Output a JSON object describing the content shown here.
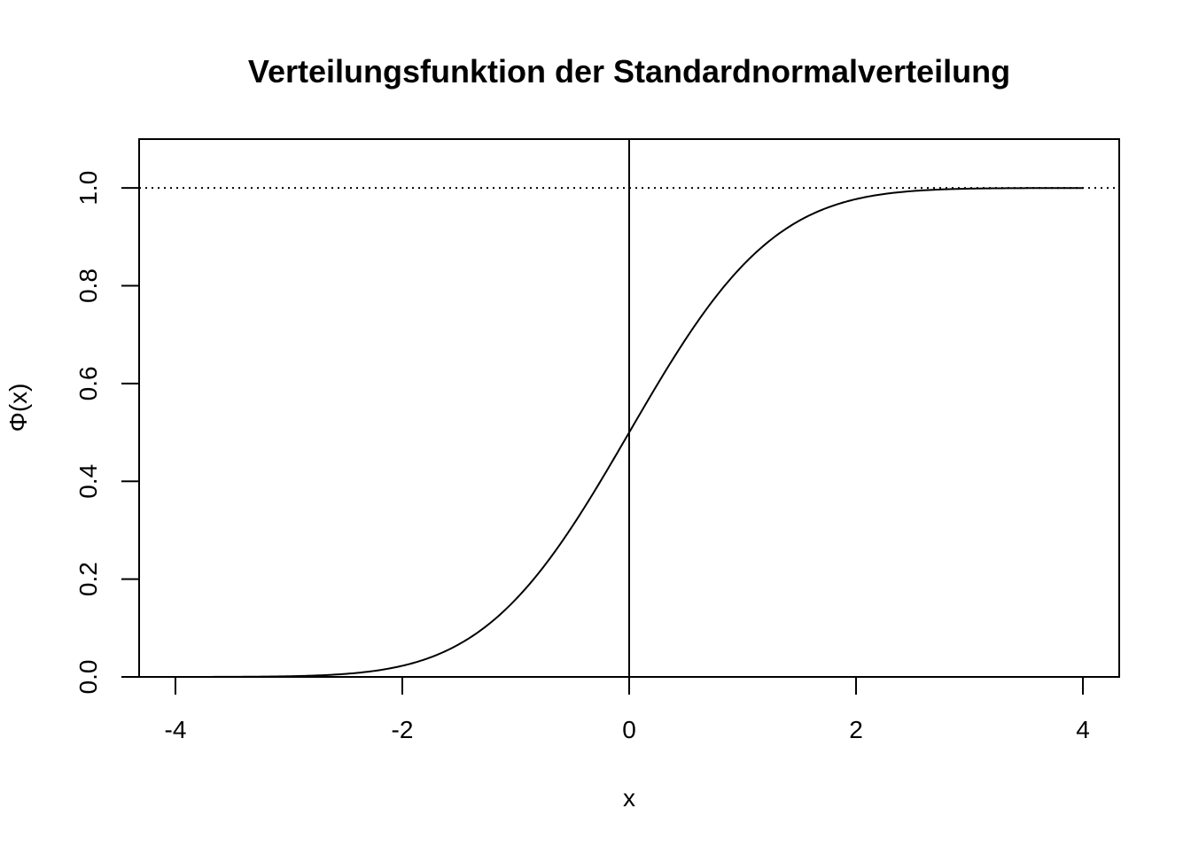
{
  "chart_data": {
    "type": "line",
    "title": "Verteilungsfunktion der Standardnormalverteilung",
    "xlabel": "x",
    "ylabel": "Φ(x)",
    "xlim": [
      -4.32,
      4.32
    ],
    "ylim": [
      0,
      1.1
    ],
    "x_ticks": [
      "-4",
      "-2",
      "0",
      "2",
      "4"
    ],
    "y_ticks": [
      "0.0",
      "0.2",
      "0.4",
      "0.6",
      "0.8",
      "1.0"
    ],
    "grid": false,
    "function": "standard normal CDF",
    "x_range": [
      -4,
      4
    ],
    "series": [
      {
        "x": [
          -4,
          -3.5,
          -3,
          -2.5,
          -2,
          -1.5,
          -1,
          -0.5,
          0,
          0.5,
          1,
          1.5,
          2,
          2.5,
          3,
          3.5,
          4
        ],
        "y": [
          3e-05,
          0.0002,
          0.0013,
          0.0062,
          0.0228,
          0.0668,
          0.1587,
          0.3085,
          0.5,
          0.6915,
          0.8413,
          0.9332,
          0.9772,
          0.9938,
          0.9987,
          0.9998,
          0.99997
        ]
      }
    ],
    "reference_lines": [
      {
        "orientation": "horizontal",
        "value": 1.0,
        "style": "dotted"
      },
      {
        "orientation": "vertical",
        "value": 0,
        "style": "solid"
      }
    ],
    "color": "#000000"
  }
}
